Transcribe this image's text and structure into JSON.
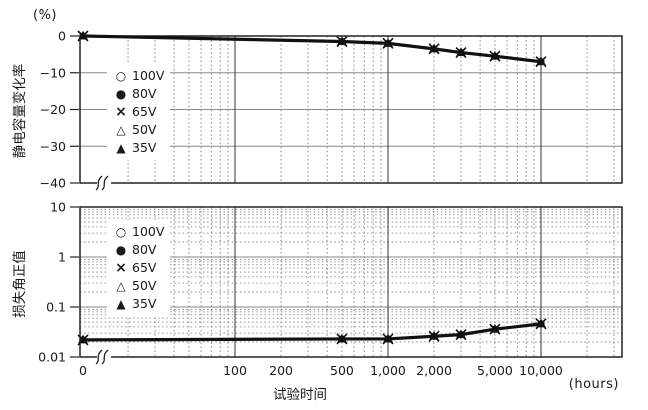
{
  "figure": {
    "x_axis_title": "试验时间",
    "x_axis_unit": "(hours)",
    "colors": {
      "ink": "#111111",
      "frame": "#222222",
      "grid_solid_gray": "#888888",
      "grid_solid_black": "#333333",
      "grid_dotted": "#777777"
    }
  },
  "legend": {
    "items": [
      {
        "symbol": "○",
        "marker": "open-circle",
        "label": "100V"
      },
      {
        "symbol": "●",
        "marker": "filled-circle",
        "label": "80V"
      },
      {
        "symbol": "×",
        "marker": "x-cross",
        "label": "65V"
      },
      {
        "symbol": "△",
        "marker": "open-triangle",
        "label": "50V"
      },
      {
        "symbol": "▲",
        "marker": "filled-triangle",
        "label": "35V"
      }
    ]
  },
  "x_axis": {
    "scale": "log, axis break between 0 and first decade",
    "tick_labels": [
      {
        "t": 0,
        "label": "0"
      },
      {
        "t": 100,
        "label": "100"
      },
      {
        "t": 200,
        "label": "200"
      },
      {
        "t": 500,
        "label": "500"
      },
      {
        "t": 1000,
        "label": "1,000"
      },
      {
        "t": 2000,
        "label": "2,000"
      },
      {
        "t": 5000,
        "label": "5,000"
      },
      {
        "t": 10000,
        "label": "10,000"
      }
    ],
    "solid_gridlines_t": [
      100,
      1000,
      10000
    ]
  },
  "chart_data": [
    {
      "type": "line",
      "title": "",
      "ylabel": "静电容量变化率",
      "y_unit": "(%)",
      "xlabel": "试验时间",
      "x_unit": "(hours)",
      "y_scale": "linear",
      "ylim": [
        -40,
        0
      ],
      "y_ticks": [
        0,
        -10,
        -20,
        -30,
        -40
      ],
      "y_tick_labels": [
        "0",
        "−10",
        "−20",
        "−30",
        "−40"
      ],
      "grid": true,
      "legend_position": "upper-left-inside",
      "all_series_overlap": true,
      "x": [
        0,
        500,
        1000,
        2000,
        3000,
        5000,
        10000
      ],
      "series": [
        {
          "name": "100V",
          "marker": "open-circle",
          "values": [
            0,
            -1.5,
            -2,
            -3.5,
            -4.5,
            -5.5,
            -7
          ]
        },
        {
          "name": "80V",
          "marker": "filled-circle",
          "values": [
            0,
            -1.5,
            -2,
            -3.5,
            -4.5,
            -5.5,
            -7
          ]
        },
        {
          "name": "65V",
          "marker": "x-cross",
          "values": [
            0,
            -1.5,
            -2,
            -3.5,
            -4.5,
            -5.5,
            -7
          ]
        },
        {
          "name": "50V",
          "marker": "open-triangle",
          "values": [
            0,
            -1.5,
            -2,
            -3.5,
            -4.5,
            -5.5,
            -7
          ]
        },
        {
          "name": "35V",
          "marker": "filled-triangle",
          "values": [
            0,
            -1.5,
            -2,
            -3.5,
            -4.5,
            -5.5,
            -7
          ]
        }
      ]
    },
    {
      "type": "line",
      "title": "",
      "ylabel": "损失角正值",
      "y_unit": "",
      "xlabel": "试验时间",
      "x_unit": "(hours)",
      "y_scale": "log",
      "ylim": [
        0.01,
        10
      ],
      "y_ticks": [
        10,
        1,
        0.1,
        0.01
      ],
      "y_tick_labels": [
        "10",
        "1",
        "0.1",
        "0.01"
      ],
      "grid": true,
      "legend_position": "upper-left-inside",
      "all_series_overlap": true,
      "x": [
        0,
        500,
        1000,
        2000,
        3000,
        5000,
        10000
      ],
      "series": [
        {
          "name": "100V",
          "marker": "open-circle",
          "values": [
            0.022,
            0.023,
            0.023,
            0.026,
            0.028,
            0.036,
            0.046
          ]
        },
        {
          "name": "80V",
          "marker": "filled-circle",
          "values": [
            0.022,
            0.023,
            0.023,
            0.026,
            0.028,
            0.036,
            0.046
          ]
        },
        {
          "name": "65V",
          "marker": "x-cross",
          "values": [
            0.022,
            0.023,
            0.023,
            0.026,
            0.028,
            0.036,
            0.046
          ]
        },
        {
          "name": "50V",
          "marker": "open-triangle",
          "values": [
            0.022,
            0.023,
            0.023,
            0.026,
            0.028,
            0.036,
            0.046
          ]
        },
        {
          "name": "35V",
          "marker": "filled-triangle",
          "values": [
            0.022,
            0.023,
            0.023,
            0.026,
            0.028,
            0.036,
            0.046
          ]
        }
      ]
    }
  ]
}
